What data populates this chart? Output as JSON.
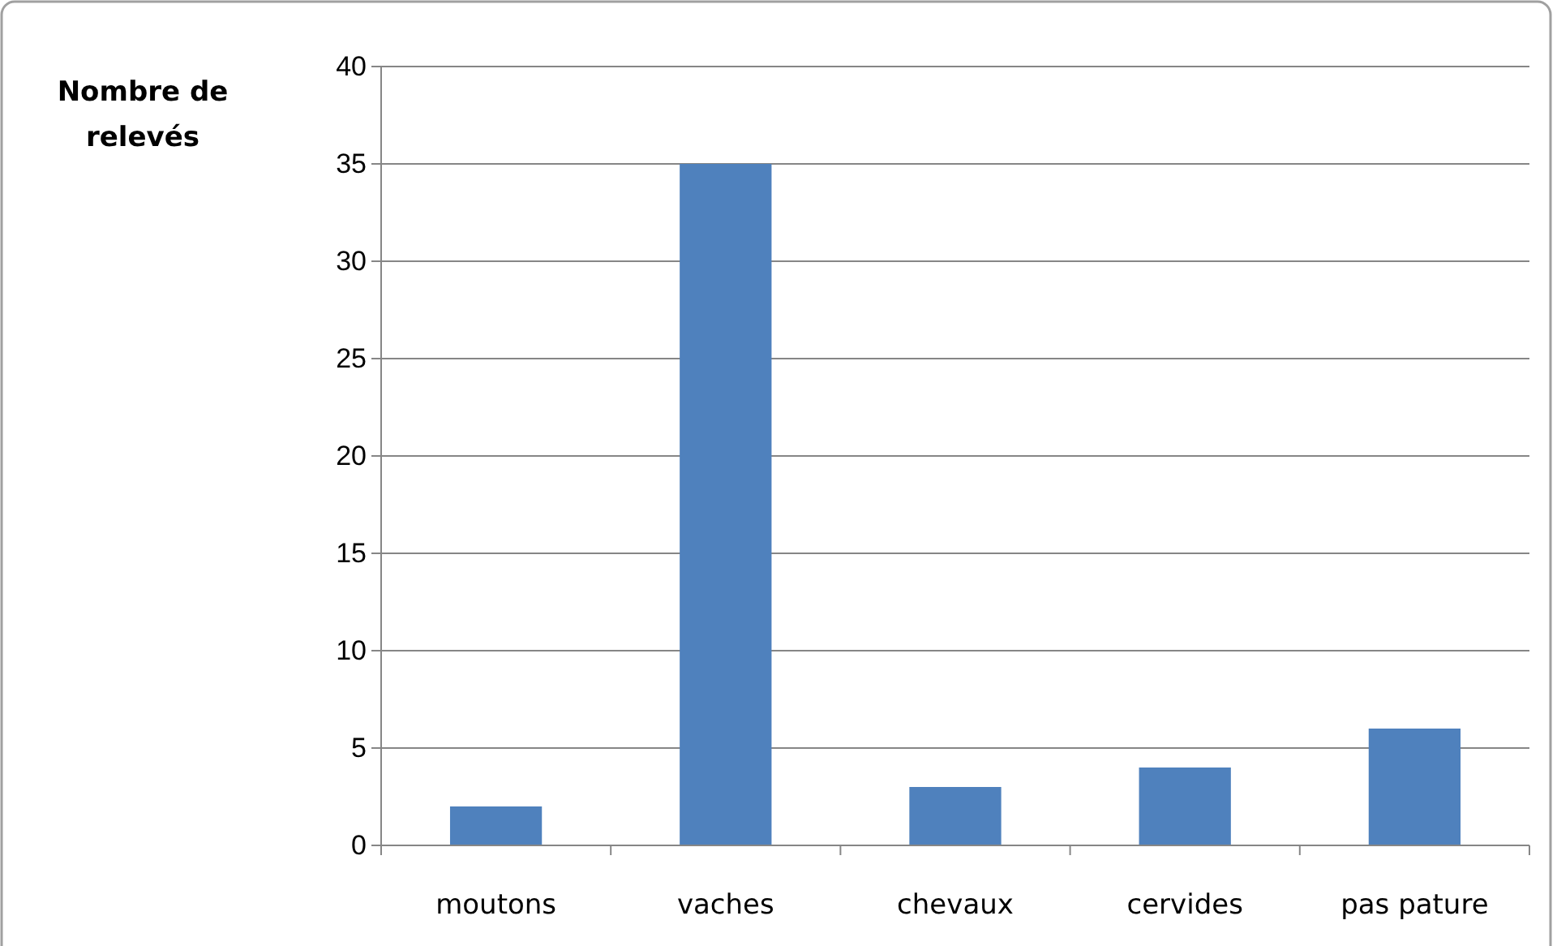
{
  "chart_data": {
    "type": "bar",
    "ylabel": "Nombre de relevés",
    "categories": [
      "moutons",
      "vaches",
      "chevaux",
      "cervides",
      "pas pature"
    ],
    "values": [
      2,
      35,
      3,
      4,
      6
    ],
    "color": "#4f81bd",
    "ylim": [
      0,
      40
    ],
    "yticks": [
      0,
      5,
      10,
      15,
      20,
      25,
      30,
      35,
      40
    ],
    "grid": "y"
  }
}
